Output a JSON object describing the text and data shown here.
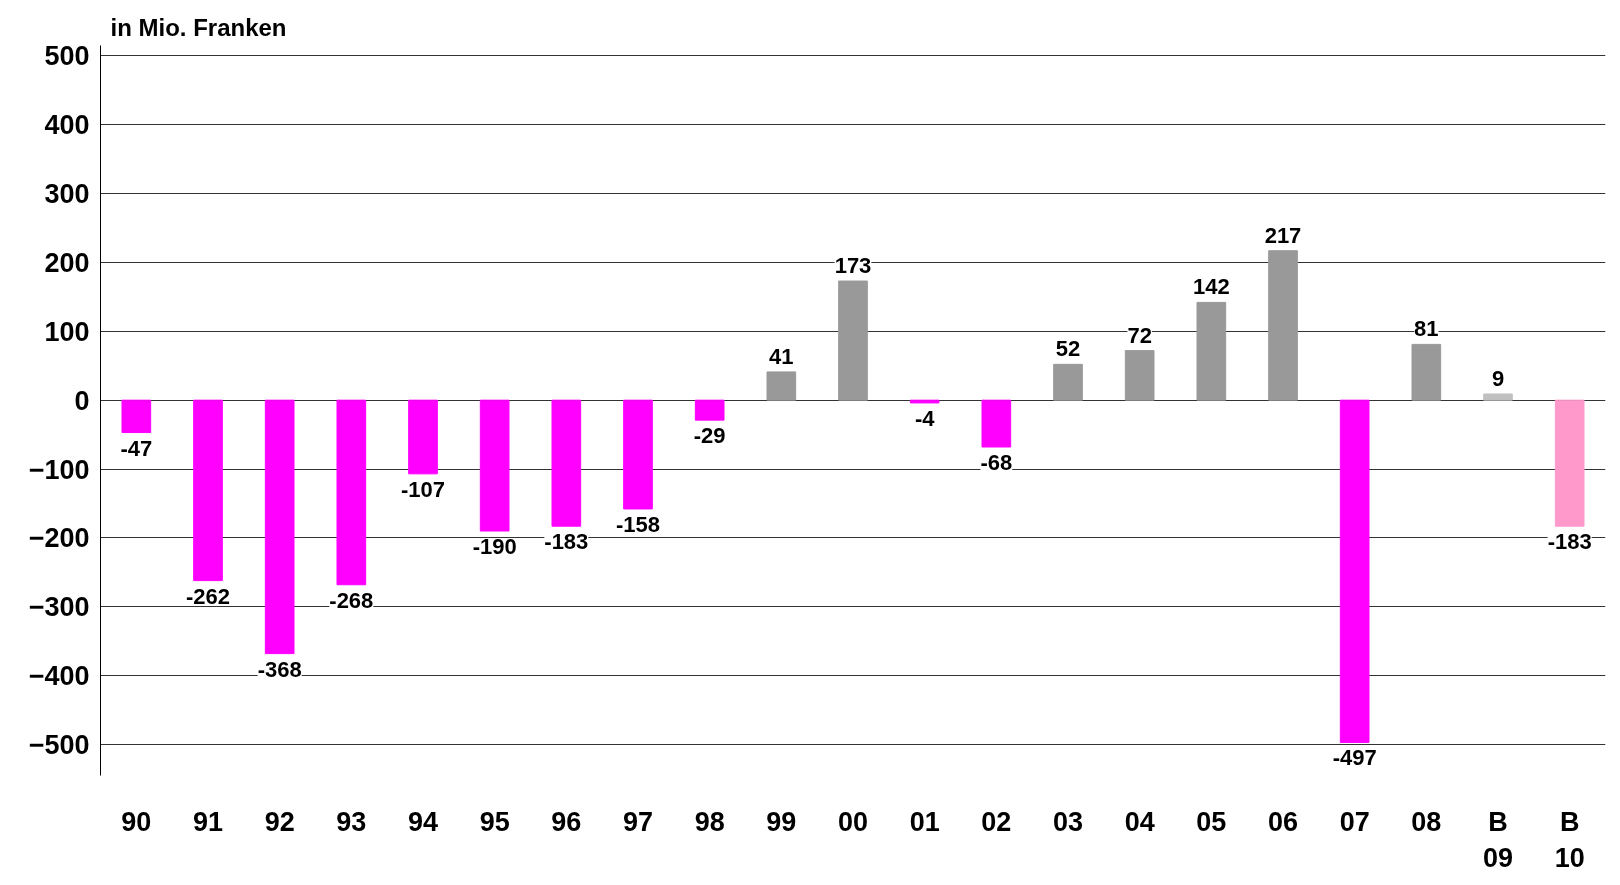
{
  "chart_data": {
    "type": "bar",
    "title": "in Mio. Franken",
    "categories": [
      "90",
      "91",
      "92",
      "93",
      "94",
      "95",
      "96",
      "97",
      "98",
      "99",
      "00",
      "01",
      "02",
      "03",
      "04",
      "05",
      "06",
      "07",
      "08",
      "B\n09",
      "B\n10"
    ],
    "values": [
      -47,
      -262,
      -368,
      -268,
      -107,
      -190,
      -183,
      -158,
      -29,
      41,
      173,
      -4,
      -68,
      52,
      72,
      142,
      217,
      -497,
      81,
      9,
      -183
    ],
    "colors": [
      "#ff00ff",
      "#ff00ff",
      "#ff00ff",
      "#ff00ff",
      "#ff00ff",
      "#ff00ff",
      "#ff00ff",
      "#ff00ff",
      "#ff00ff",
      "#999999",
      "#999999",
      "#ff00ff",
      "#ff00ff",
      "#999999",
      "#999999",
      "#999999",
      "#999999",
      "#ff00ff",
      "#999999",
      "#c0c0c0",
      "#ff99cc"
    ],
    "ylim": [
      -545,
      515
    ],
    "yticks": [
      -500,
      -400,
      -300,
      -200,
      -100,
      0,
      100,
      200,
      300,
      400,
      500
    ],
    "grid": "y",
    "data_labels": true
  }
}
